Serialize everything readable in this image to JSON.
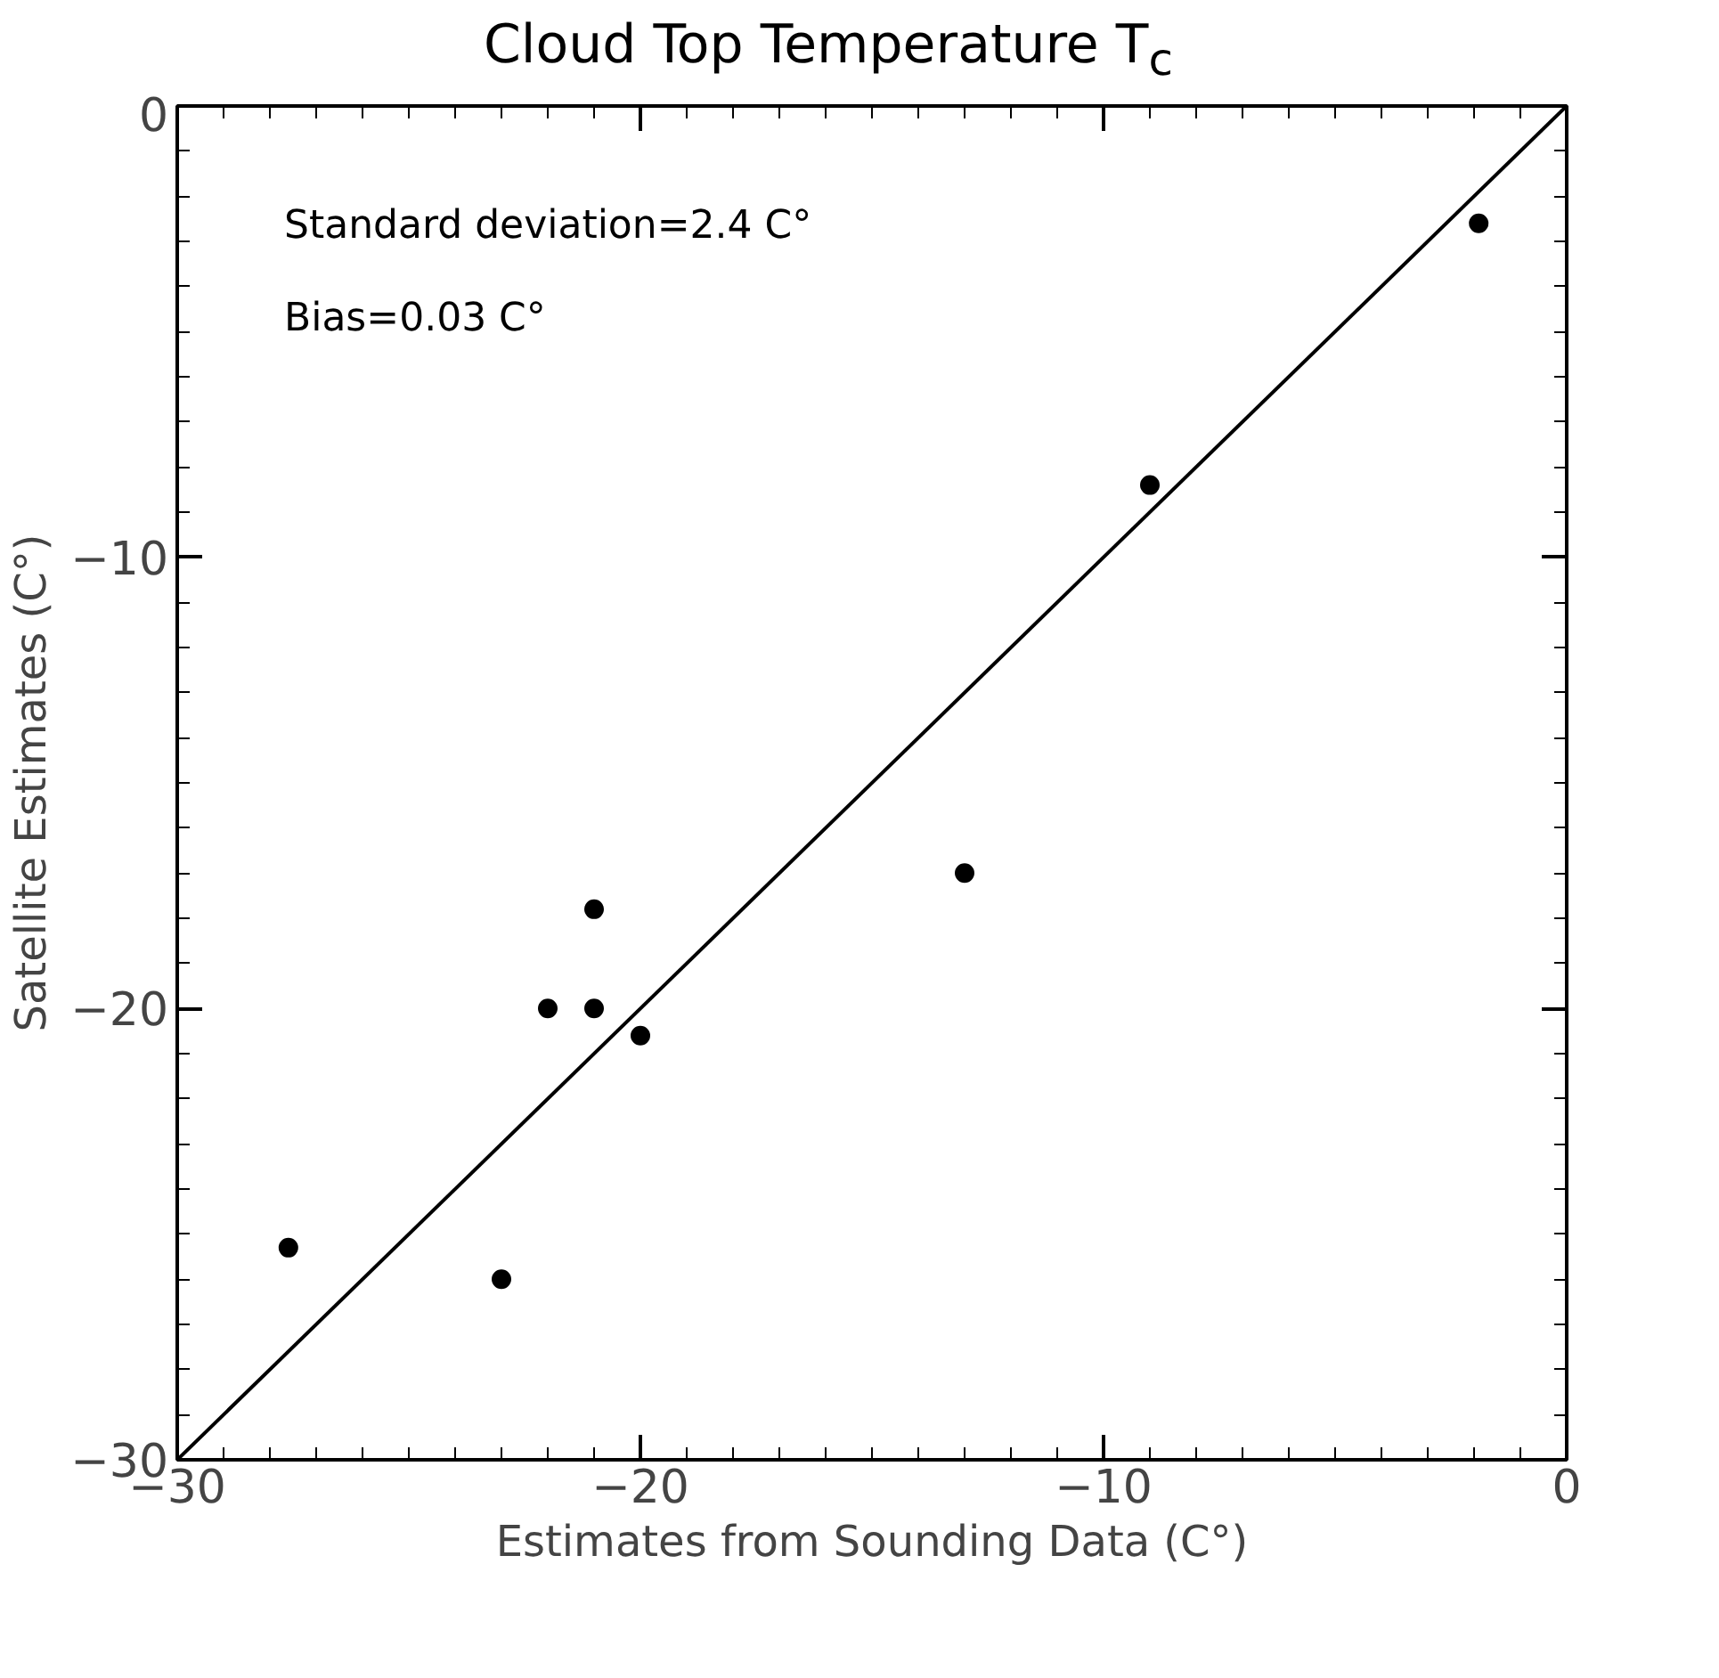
{
  "chart_data": {
    "type": "scatter",
    "title": "Cloud Top Temperature T$_{c}$",
    "xlabel": "Estimates from Sounding Data (C°)",
    "ylabel": "Satellite Estimates (C°)",
    "annotations": [
      "Standard deviation=2.4 C°",
      "Bias=0.03 C°"
    ],
    "marker": "circle",
    "grid": false,
    "xlim": [
      -30,
      0
    ],
    "ylim": [
      -30,
      0
    ],
    "xticks": [
      -30,
      -20,
      -10,
      0
    ],
    "yticks": [
      -30,
      -20,
      -10,
      0
    ],
    "series": [
      {
        "color": "#000000",
        "x": [
          -27.6,
          -23,
          -22,
          -21,
          -21,
          -20,
          -13,
          -9,
          -1.9
        ],
        "values": [
          -25.3,
          -26,
          -20,
          -20,
          -17.8,
          -20.6,
          -17,
          -8.4,
          -2.6
        ]
      },
      {
        "type": "line",
        "marker": "none",
        "color": "#000000",
        "x": [
          -30,
          0
        ],
        "values": [
          -30,
          0
        ]
      }
    ]
  }
}
